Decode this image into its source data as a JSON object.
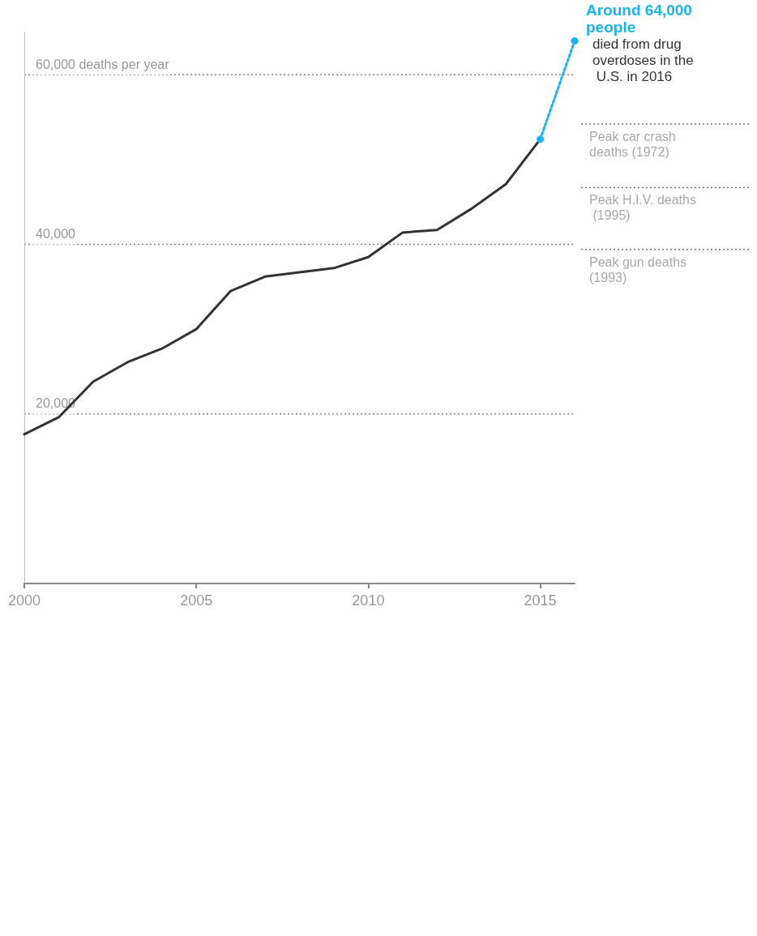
{
  "chart_data": {
    "type": "line",
    "series": [
      {
        "color": "#333333",
        "marker": "none",
        "line_style": "solid",
        "x": [
          2000,
          2001,
          2002,
          2003,
          2004,
          2005,
          2006,
          2007,
          2008,
          2009,
          2010,
          2011,
          2012,
          2013,
          2014,
          2015
        ],
        "values": [
          17600,
          19600,
          23800,
          26100,
          27700,
          30000,
          34500,
          36200,
          36700,
          37200,
          38500,
          41400,
          41700,
          44200,
          47100,
          52400
        ]
      },
      {
        "color": "#1ab4f5",
        "marker": "circle",
        "line_style": "dotted",
        "x": [
          2015,
          2016
        ],
        "values": [
          52400,
          64000
        ]
      }
    ],
    "xlim": [
      2000,
      2016
    ],
    "xticks": [
      2000,
      2005,
      2010,
      2015
    ],
    "ylim": [
      0,
      65000
    ],
    "yticks": [
      {
        "value": 20000,
        "label": "20,000"
      },
      {
        "value": 40000,
        "label": "40,000"
      },
      {
        "value": 60000,
        "label": "60,000 deaths per year"
      }
    ],
    "grid": "y",
    "ref_lines": [
      {
        "axis": "y",
        "value": 54200,
        "label": "Peak car crash deaths (1972)",
        "line_style": "dotted",
        "color": "#777777"
      },
      {
        "axis": "y",
        "value": 46700,
        "label": "Peak H.I.V. deaths (1995)",
        "line_style": "dotted",
        "color": "#777777"
      },
      {
        "axis": "y",
        "value": 39400,
        "label": "Peak gun deaths (1993)",
        "line_style": "dotted",
        "color": "#777777"
      }
    ],
    "annotations": [
      {
        "text": "Around 64,000 people",
        "x": 2016,
        "y": 64000
      },
      "died from drug overdoses in the U.S. in 2016"
    ]
  }
}
